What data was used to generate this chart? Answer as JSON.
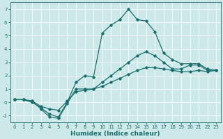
{
  "xlabel": "Humidex (Indice chaleur)",
  "ylabel": "",
  "background_color": "#cce8e8",
  "grid_color": "#ffffff",
  "line_color": "#1a6e6e",
  "xlim": [
    -0.5,
    23.5
  ],
  "ylim": [
    -1.5,
    7.5
  ],
  "xticks": [
    0,
    1,
    2,
    3,
    4,
    5,
    6,
    7,
    8,
    9,
    10,
    11,
    12,
    13,
    14,
    15,
    16,
    17,
    18,
    19,
    20,
    21,
    22,
    23
  ],
  "yticks": [
    -1,
    0,
    1,
    2,
    3,
    4,
    5,
    6,
    7
  ],
  "line2_x": [
    0,
    1,
    2,
    3,
    4,
    5,
    6,
    7,
    8,
    9,
    10,
    11,
    12,
    13,
    14,
    15,
    16,
    17,
    18,
    19,
    20,
    21,
    22,
    23
  ],
  "line2_y": [
    0.2,
    0.2,
    0.0,
    -0.4,
    -0.9,
    -1.1,
    0.0,
    1.5,
    2.0,
    1.9,
    5.2,
    5.8,
    6.2,
    7.0,
    6.2,
    6.1,
    5.3,
    3.7,
    3.2,
    2.9,
    2.9,
    2.9,
    2.5,
    2.4
  ],
  "line1_x": [
    0,
    1,
    2,
    3,
    4,
    5,
    6,
    7,
    8,
    9,
    10,
    11,
    12,
    13,
    14,
    15,
    16,
    17,
    18,
    19,
    20,
    21,
    22,
    23
  ],
  "line1_y": [
    0.2,
    0.2,
    0.1,
    -0.5,
    -1.1,
    -1.2,
    -0.1,
    1.0,
    1.0,
    1.0,
    1.5,
    2.0,
    2.5,
    3.0,
    3.5,
    3.8,
    3.5,
    3.0,
    2.5,
    2.5,
    2.8,
    2.8,
    2.4,
    2.4
  ],
  "line3_x": [
    0,
    1,
    2,
    3,
    4,
    5,
    6,
    7,
    8,
    9,
    10,
    11,
    12,
    13,
    14,
    15,
    16,
    17,
    18,
    19,
    20,
    21,
    22,
    23
  ],
  "line3_y": [
    0.2,
    0.2,
    0.1,
    -0.3,
    -0.5,
    -0.6,
    0.1,
    0.8,
    0.9,
    1.0,
    1.2,
    1.5,
    1.8,
    2.1,
    2.4,
    2.6,
    2.6,
    2.5,
    2.4,
    2.3,
    2.3,
    2.4,
    2.3,
    2.4
  ],
  "marker": "D",
  "markersize": 1.8,
  "linewidth": 0.9,
  "xlabel_fontsize": 6.5,
  "tick_fontsize": 5.0
}
